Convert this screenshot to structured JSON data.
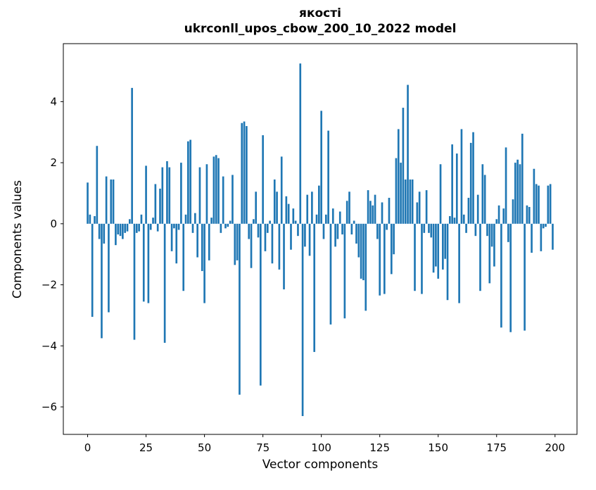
{
  "figure": {
    "title_line1": "якості",
    "title_line2": "ukrconll_upos_cbow_200_10_2022 model",
    "xlabel": "Vector components",
    "ylabel": "Components values"
  },
  "chart_data": {
    "type": "bar",
    "title": "якості\nukrconll_upos_cbow_200_10_2022 model",
    "xlabel": "Vector components",
    "ylabel": "Components values",
    "legend": "none",
    "grid": false,
    "bar_color": "#1f77b4",
    "xlim": [
      -10.4,
      209.4
    ],
    "ylim": [
      -6.9,
      5.9
    ],
    "xticks": [
      0,
      25,
      50,
      75,
      100,
      125,
      150,
      175,
      200
    ],
    "yticks": [
      -6,
      -4,
      -2,
      0,
      2,
      4
    ],
    "x_start": 0,
    "values": [
      1.35,
      0.3,
      -3.05,
      0.25,
      2.55,
      -0.5,
      -3.75,
      -0.65,
      1.55,
      -2.9,
      1.45,
      1.45,
      -0.7,
      -0.35,
      -0.4,
      -0.5,
      -0.3,
      -0.25,
      0.15,
      4.45,
      -3.8,
      -0.3,
      -0.25,
      0.3,
      -2.55,
      1.9,
      -2.6,
      -0.2,
      0.2,
      1.3,
      -0.25,
      1.15,
      1.85,
      -3.9,
      2.05,
      1.85,
      -0.9,
      -0.15,
      -1.3,
      -0.2,
      2.0,
      -2.2,
      0.3,
      2.7,
      2.75,
      -0.3,
      0.35,
      -1.1,
      1.85,
      -1.55,
      -2.6,
      1.95,
      -1.2,
      0.2,
      2.2,
      2.25,
      2.15,
      -0.3,
      1.55,
      -0.15,
      -0.1,
      0.1,
      1.6,
      -1.35,
      -1.2,
      -5.6,
      3.3,
      3.35,
      3.2,
      -0.5,
      -1.45,
      0.15,
      1.05,
      -0.45,
      -5.3,
      2.9,
      -0.9,
      -0.3,
      0.1,
      -1.3,
      1.45,
      1.05,
      -1.5,
      2.2,
      -2.15,
      0.9,
      0.65,
      -0.85,
      0.5,
      0.1,
      -0.4,
      5.25,
      -6.3,
      -0.75,
      0.95,
      -1.05,
      1.05,
      -4.2,
      0.3,
      1.25,
      3.7,
      -0.5,
      0.3,
      3.05,
      -3.3,
      0.5,
      -0.75,
      -0.5,
      0.4,
      -0.35,
      -3.1,
      0.75,
      1.05,
      -0.35,
      0.1,
      -0.65,
      -1.1,
      -1.8,
      -1.85,
      -2.85,
      1.1,
      0.75,
      0.6,
      0.95,
      -0.5,
      -2.35,
      0.7,
      -2.3,
      -0.2,
      0.85,
      -1.65,
      -1.0,
      2.15,
      3.1,
      2.0,
      3.8,
      1.45,
      4.55,
      1.45,
      1.45,
      -2.2,
      0.7,
      1.05,
      -2.3,
      -0.3,
      1.1,
      -0.3,
      -0.45,
      -1.6,
      -1.4,
      -1.8,
      1.95,
      -1.5,
      -1.15,
      -2.5,
      0.25,
      2.6,
      0.2,
      2.3,
      -2.6,
      3.1,
      0.3,
      -0.3,
      0.85,
      2.65,
      3.0,
      -0.4,
      0.95,
      -2.2,
      1.95,
      1.6,
      -0.4,
      -1.95,
      -0.75,
      -1.4,
      0.15,
      0.6,
      -3.4,
      0.5,
      2.5,
      -0.6,
      -3.55,
      0.8,
      2.0,
      2.1,
      1.95,
      2.95,
      -3.5,
      0.6,
      0.55,
      -0.95,
      1.8,
      1.3,
      1.25,
      -0.9,
      -0.15,
      -0.1,
      1.25,
      1.3,
      -0.85
    ]
  }
}
